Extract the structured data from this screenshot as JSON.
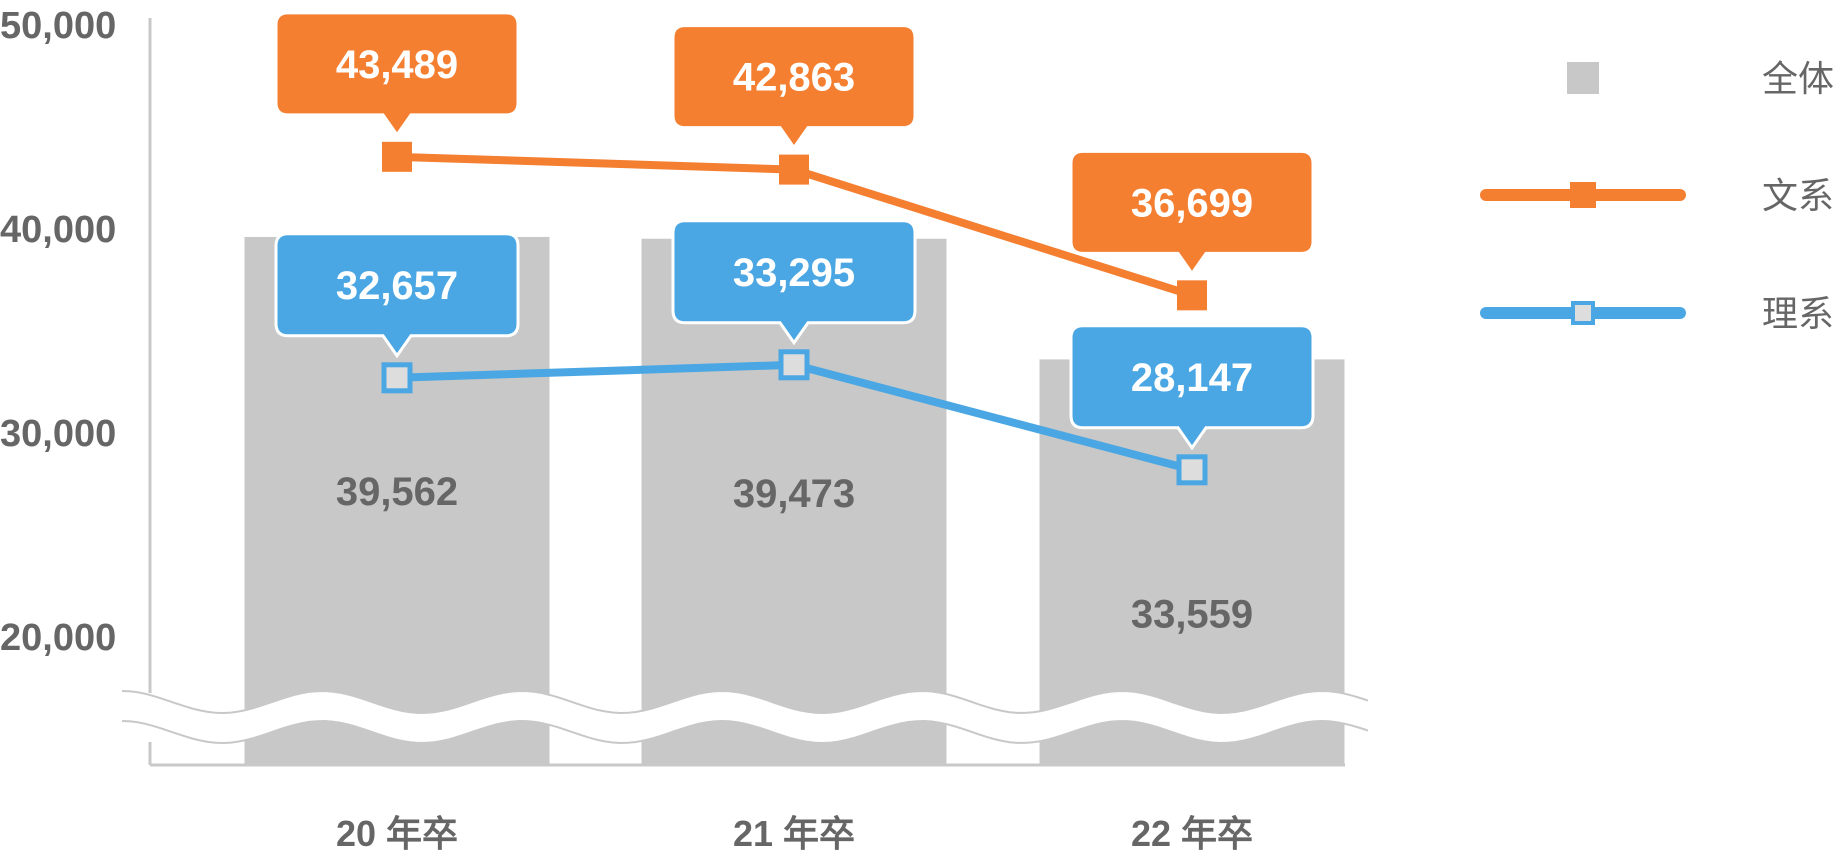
{
  "chart_data": {
    "type": "bar",
    "categories": [
      "20 年卒",
      "21 年卒",
      "22 年卒"
    ],
    "y_ticks": [
      "50,000",
      "40,000",
      "30,000",
      "20,000"
    ],
    "ylim": [
      16000,
      50000
    ],
    "axis_break": true,
    "grid": false,
    "legend_position": "right",
    "series": [
      {
        "name": "全体",
        "kind": "bar",
        "color": "#c8c8c8",
        "values": [
          39562,
          39473,
          33559
        ],
        "labels": [
          "39,562",
          "39,473",
          "33,559"
        ]
      },
      {
        "name": "文系",
        "kind": "line",
        "marker": "filled-square",
        "color": "#f47f31",
        "values": [
          43489,
          42863,
          36699
        ],
        "labels": [
          "43,489",
          "42,863",
          "36,699"
        ]
      },
      {
        "name": "理系",
        "kind": "line",
        "marker": "hollow-square",
        "color": "#4aa7e3",
        "values": [
          32657,
          33295,
          28147
        ],
        "labels": [
          "32,657",
          "33,295",
          "28,147"
        ]
      }
    ]
  }
}
